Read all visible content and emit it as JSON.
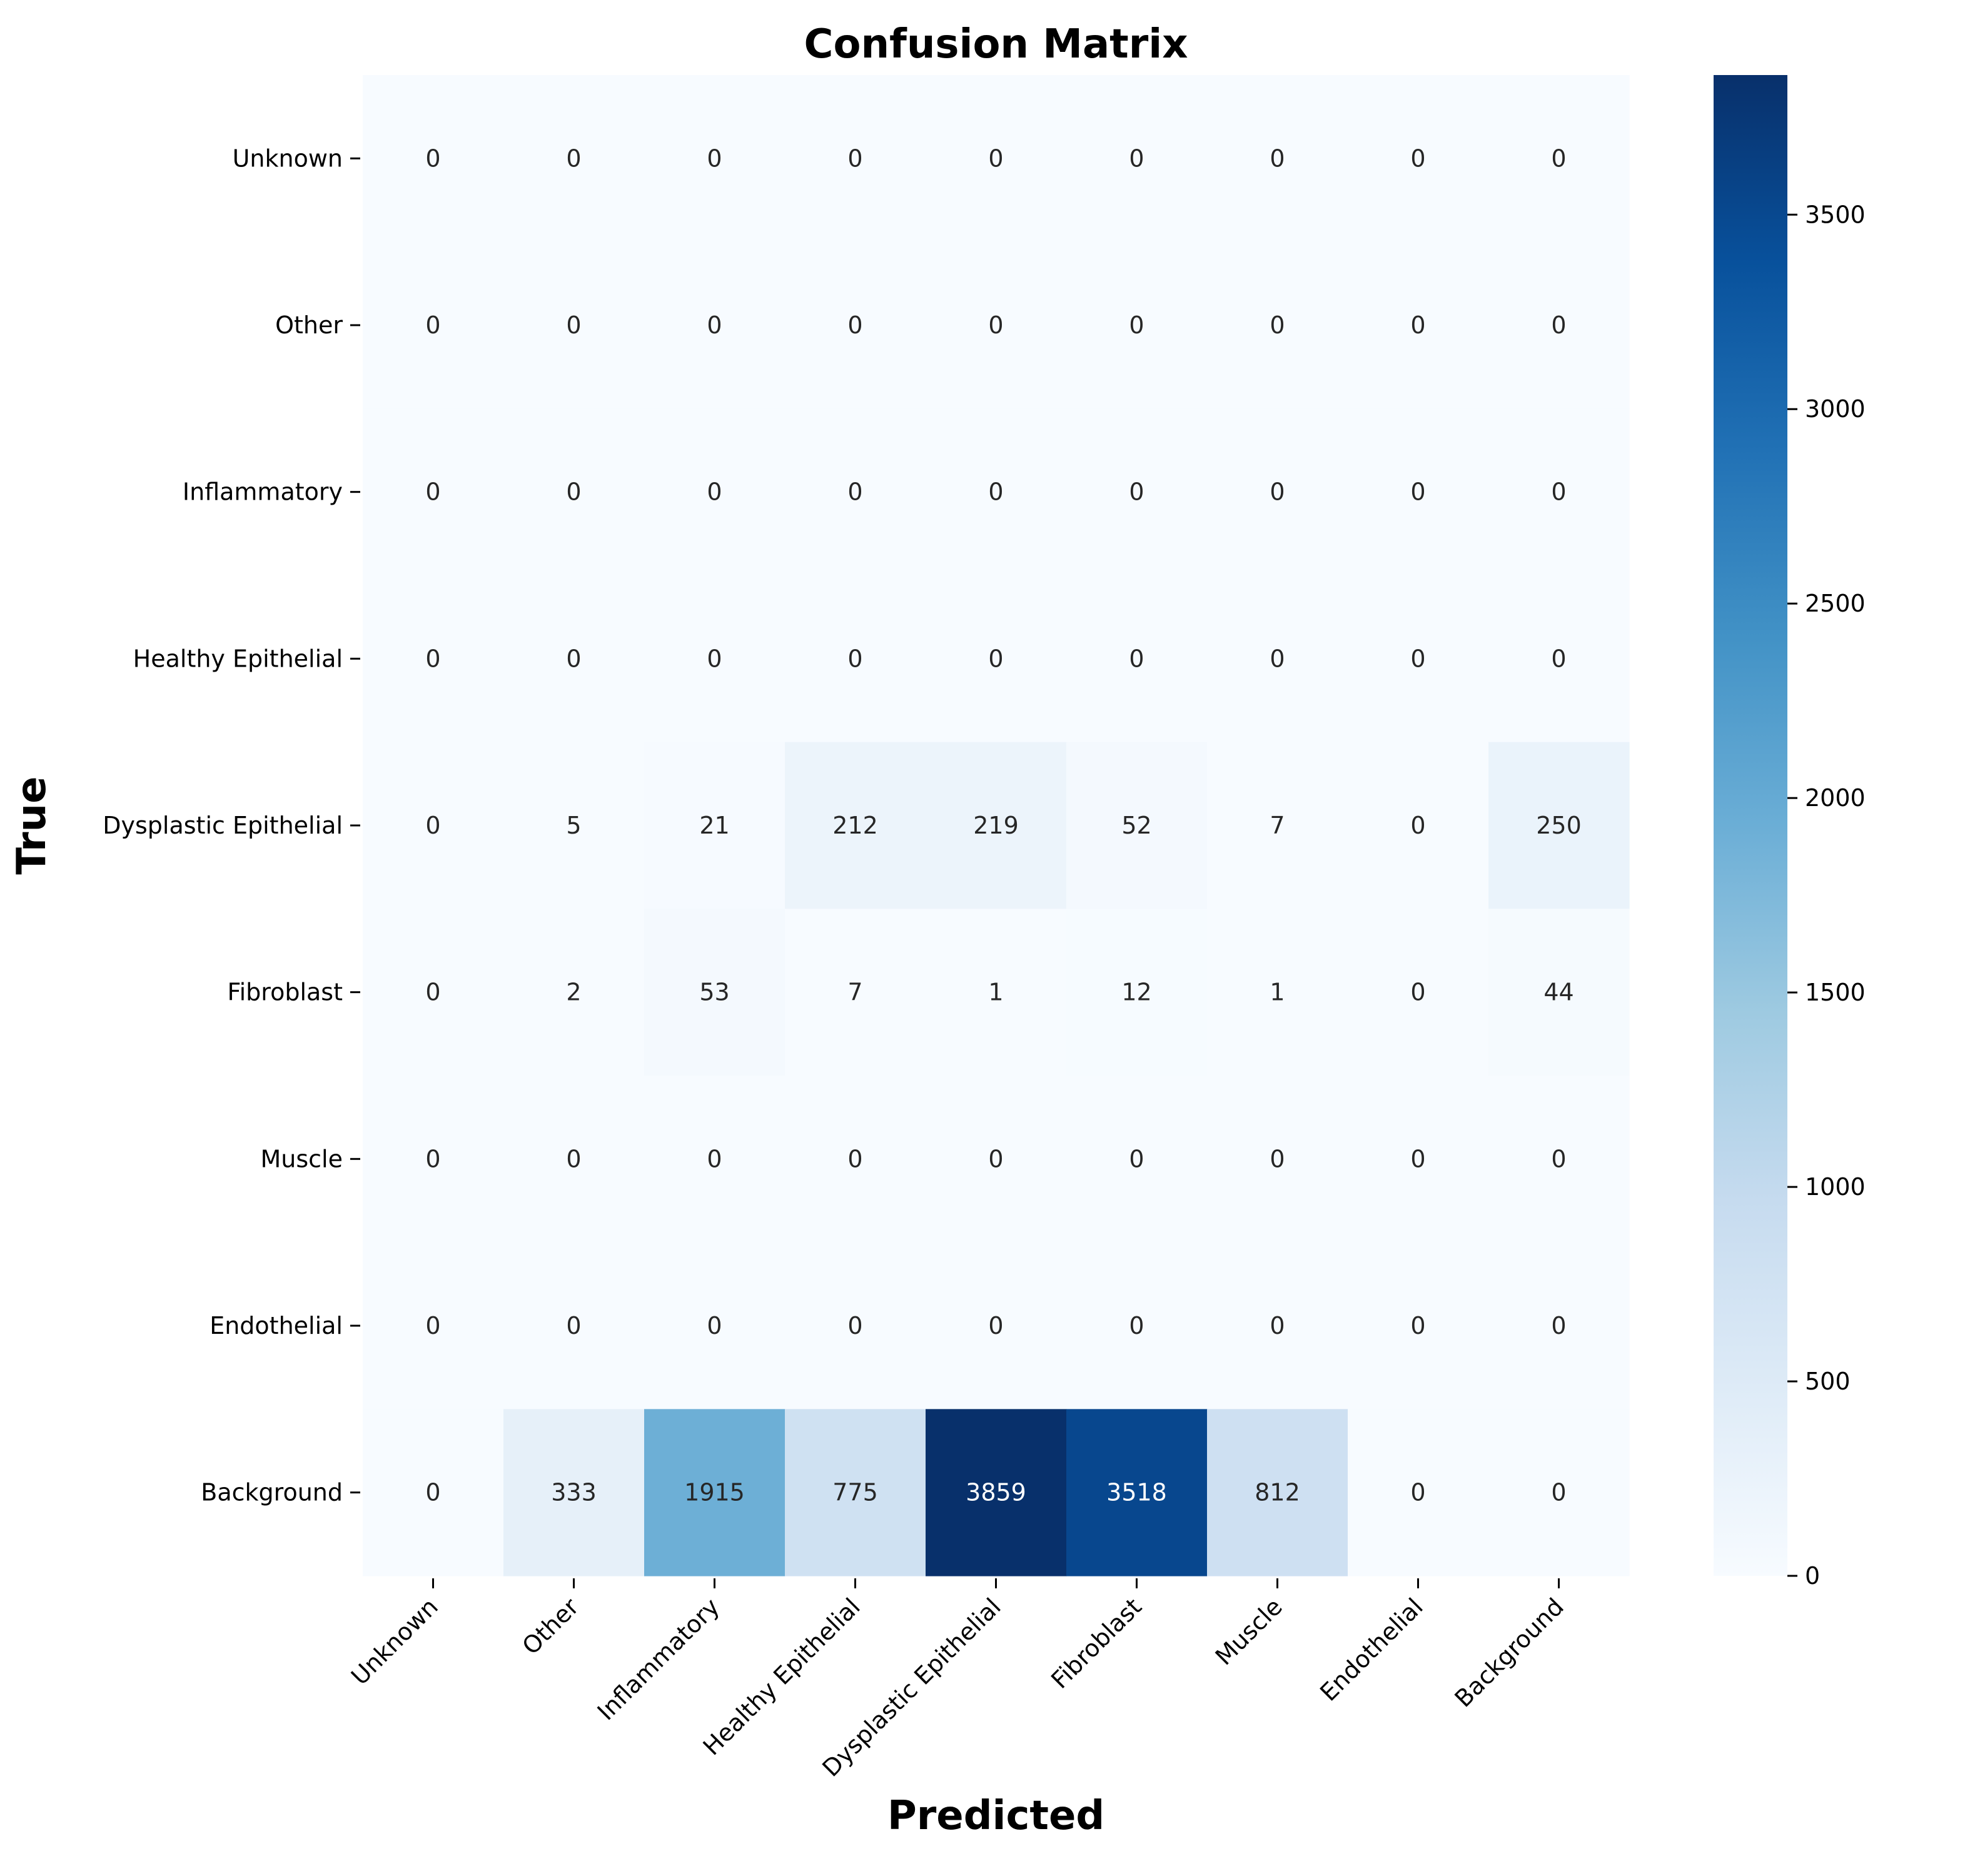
{
  "chart_data": {
    "type": "heatmap",
    "title": "Confusion Matrix",
    "xlabel": "Predicted",
    "ylabel": "True",
    "x_categories": [
      "Unknown",
      "Other",
      "Inflammatory",
      "Healthy Epithelial",
      "Dysplastic Epithelial",
      "Fibroblast",
      "Muscle",
      "Endothelial",
      "Background"
    ],
    "y_categories": [
      "Unknown",
      "Other",
      "Inflammatory",
      "Healthy Epithelial",
      "Dysplastic Epithelial",
      "Fibroblast",
      "Muscle",
      "Endothelial",
      "Background"
    ],
    "values": [
      [
        0,
        0,
        0,
        0,
        0,
        0,
        0,
        0,
        0
      ],
      [
        0,
        0,
        0,
        0,
        0,
        0,
        0,
        0,
        0
      ],
      [
        0,
        0,
        0,
        0,
        0,
        0,
        0,
        0,
        0
      ],
      [
        0,
        0,
        0,
        0,
        0,
        0,
        0,
        0,
        0
      ],
      [
        0,
        5,
        21,
        212,
        219,
        52,
        7,
        0,
        250
      ],
      [
        0,
        2,
        53,
        7,
        1,
        12,
        1,
        0,
        44
      ],
      [
        0,
        0,
        0,
        0,
        0,
        0,
        0,
        0,
        0
      ],
      [
        0,
        0,
        0,
        0,
        0,
        0,
        0,
        0,
        0
      ],
      [
        0,
        333,
        1915,
        775,
        3859,
        3518,
        812,
        0,
        0
      ]
    ],
    "colormap": "Blues",
    "color_range": [
      0,
      3859
    ],
    "colorbar_ticks": [
      0,
      500,
      1000,
      1500,
      2000,
      2500,
      3000,
      3500
    ],
    "annotations": true,
    "grid": false
  }
}
